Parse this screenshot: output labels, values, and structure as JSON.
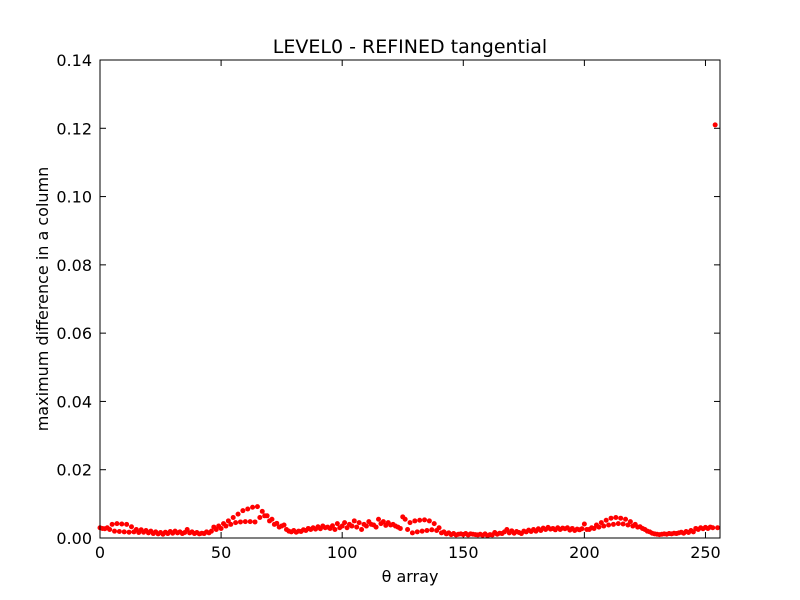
{
  "chart_data": {
    "type": "scatter",
    "title": "LEVEL0 - REFINED tangential",
    "xlabel": "θ array",
    "ylabel": "maximum difference in a column",
    "xlim": [
      0,
      256
    ],
    "ylim": [
      0,
      0.14
    ],
    "xticks": [
      0,
      50,
      100,
      150,
      200,
      250
    ],
    "yticks": [
      {
        "value": 0,
        "label": "0.00"
      },
      {
        "value": 0.02,
        "label": "0.02"
      },
      {
        "value": 0.04,
        "label": "0.04"
      },
      {
        "value": 0.06,
        "label": "0.06"
      },
      {
        "value": 0.08,
        "label": "0.08"
      },
      {
        "value": 0.1,
        "label": "0.10"
      },
      {
        "value": 0.12,
        "label": "0.12"
      },
      {
        "value": 0.14,
        "label": "0.14"
      }
    ],
    "color": "#ff0000",
    "x": [
      0,
      1,
      2,
      3,
      4,
      5,
      6,
      7,
      8,
      9,
      10,
      11,
      12,
      13,
      14,
      15,
      16,
      17,
      18,
      19,
      20,
      21,
      22,
      23,
      24,
      25,
      26,
      27,
      28,
      29,
      30,
      31,
      32,
      33,
      34,
      35,
      36,
      37,
      38,
      39,
      40,
      41,
      42,
      43,
      44,
      45,
      46,
      47,
      48,
      49,
      50,
      51,
      52,
      53,
      54,
      55,
      56,
      57,
      58,
      59,
      60,
      61,
      62,
      63,
      64,
      65,
      66,
      67,
      68,
      69,
      70,
      71,
      72,
      73,
      74,
      75,
      76,
      77,
      78,
      79,
      80,
      81,
      82,
      83,
      84,
      85,
      86,
      87,
      88,
      89,
      90,
      91,
      92,
      93,
      94,
      95,
      96,
      97,
      98,
      99,
      100,
      101,
      102,
      103,
      104,
      105,
      106,
      107,
      108,
      109,
      110,
      111,
      112,
      113,
      114,
      115,
      116,
      117,
      118,
      119,
      120,
      121,
      122,
      123,
      124,
      125,
      126,
      127,
      128,
      129,
      130,
      131,
      132,
      133,
      134,
      135,
      136,
      137,
      138,
      139,
      140,
      141,
      142,
      143,
      144,
      145,
      146,
      147,
      148,
      149,
      150,
      151,
      152,
      153,
      154,
      155,
      156,
      157,
      158,
      159,
      160,
      161,
      162,
      163,
      164,
      165,
      166,
      167,
      168,
      169,
      170,
      171,
      172,
      173,
      174,
      175,
      176,
      177,
      178,
      179,
      180,
      181,
      182,
      183,
      184,
      185,
      186,
      187,
      188,
      189,
      190,
      191,
      192,
      193,
      194,
      195,
      196,
      197,
      198,
      199,
      200,
      201,
      202,
      203,
      204,
      205,
      206,
      207,
      208,
      209,
      210,
      211,
      212,
      213,
      214,
      215,
      216,
      217,
      218,
      219,
      220,
      221,
      222,
      223,
      224,
      225,
      226,
      227,
      228,
      229,
      230,
      231,
      232,
      233,
      234,
      235,
      236,
      237,
      238,
      239,
      240,
      241,
      242,
      243,
      244,
      245,
      246,
      247,
      248,
      249,
      250,
      251,
      252,
      253,
      254,
      255
    ],
    "values": [
      0.003,
      0.0028,
      0.0027,
      0.003,
      0.0025,
      0.004,
      0.002,
      0.0042,
      0.0019,
      0.0041,
      0.0018,
      0.004,
      0.0017,
      0.0033,
      0.0018,
      0.0025,
      0.0016,
      0.0024,
      0.0017,
      0.0022,
      0.0015,
      0.002,
      0.0013,
      0.0018,
      0.0012,
      0.0016,
      0.0011,
      0.0017,
      0.0013,
      0.0019,
      0.0014,
      0.002,
      0.0015,
      0.0018,
      0.0013,
      0.0016,
      0.0025,
      0.0015,
      0.0018,
      0.0013,
      0.0016,
      0.0012,
      0.0014,
      0.0013,
      0.0018,
      0.0015,
      0.002,
      0.0032,
      0.0025,
      0.0035,
      0.0028,
      0.0042,
      0.0035,
      0.005,
      0.004,
      0.006,
      0.0045,
      0.007,
      0.0047,
      0.008,
      0.0048,
      0.0085,
      0.0048,
      0.009,
      0.0047,
      0.0092,
      0.006,
      0.0078,
      0.0065,
      0.0065,
      0.005,
      0.0055,
      0.004,
      0.0043,
      0.0032,
      0.0035,
      0.0038,
      0.0025,
      0.002,
      0.0018,
      0.0022,
      0.0017,
      0.002,
      0.0019,
      0.0024,
      0.0022,
      0.0028,
      0.0025,
      0.003,
      0.0026,
      0.0033,
      0.0027,
      0.0035,
      0.003,
      0.0032,
      0.0028,
      0.0036,
      0.0025,
      0.0042,
      0.003,
      0.0035,
      0.0045,
      0.003,
      0.004,
      0.0035,
      0.005,
      0.0032,
      0.0045,
      0.0025,
      0.004,
      0.0035,
      0.0048,
      0.004,
      0.0038,
      0.0032,
      0.0055,
      0.0042,
      0.0048,
      0.0037,
      0.0045,
      0.0038,
      0.004,
      0.0035,
      0.0032,
      0.0028,
      0.0062,
      0.0055,
      0.0025,
      0.0045,
      0.0015,
      0.005,
      0.0018,
      0.0052,
      0.002,
      0.0053,
      0.0022,
      0.005,
      0.0024,
      0.0042,
      0.0022,
      0.003,
      0.0015,
      0.0018,
      0.0012,
      0.0015,
      0.001,
      0.0013,
      0.0009,
      0.0011,
      0.0012,
      0.001,
      0.0013,
      0.0009,
      0.0012,
      0.0011,
      0.001,
      0.0009,
      0.0011,
      0.0008,
      0.0012,
      0.0007,
      0.001,
      0.0009,
      0.0016,
      0.0011,
      0.0014,
      0.0013,
      0.0018,
      0.0025,
      0.0015,
      0.0021,
      0.0014,
      0.0019,
      0.0016,
      0.0013,
      0.002,
      0.0018,
      0.0023,
      0.0019,
      0.0025,
      0.002,
      0.0027,
      0.0022,
      0.0029,
      0.0025,
      0.0031,
      0.0026,
      0.0028,
      0.0024,
      0.003,
      0.0025,
      0.0029,
      0.0027,
      0.003,
      0.0023,
      0.0028,
      0.0022,
      0.0026,
      0.0024,
      0.0027,
      0.0041,
      0.0025,
      0.0025,
      0.003,
      0.0028,
      0.0038,
      0.0032,
      0.0045,
      0.0035,
      0.0052,
      0.0038,
      0.0058,
      0.004,
      0.006,
      0.0042,
      0.0058,
      0.0041,
      0.0055,
      0.0038,
      0.0048,
      0.0035,
      0.004,
      0.0032,
      0.0033,
      0.0028,
      0.0025,
      0.002,
      0.0018,
      0.0014,
      0.0012,
      0.0011,
      0.001,
      0.0011,
      0.0012,
      0.0011,
      0.0013,
      0.0012,
      0.0014,
      0.0013,
      0.0015,
      0.0017,
      0.0014,
      0.0019,
      0.0016,
      0.0022,
      0.0018,
      0.0028,
      0.0025,
      0.003,
      0.0027,
      0.0031,
      0.0028,
      0.0032,
      0.003,
      0.121,
      0.003
    ]
  }
}
